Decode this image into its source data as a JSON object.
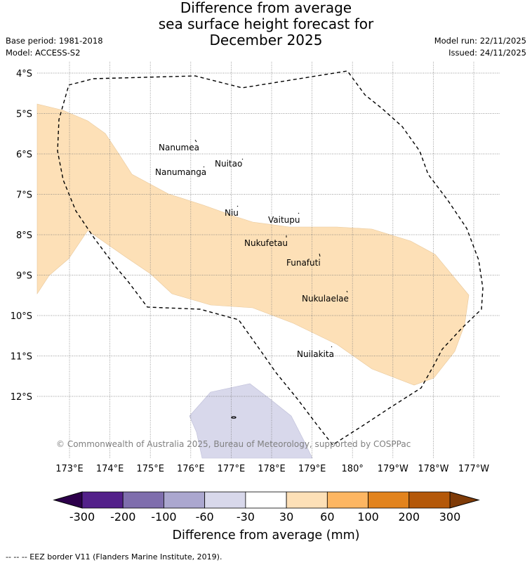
{
  "title": {
    "line1": "Difference from average",
    "line2": "sea surface height forecast for",
    "line3": "December 2025"
  },
  "meta": {
    "base_period": "Base period: 1981-2018",
    "model": "Model: ACCESS-S2",
    "model_run": "Model run: 22/11/2025",
    "issued": "Issued: 24/11/2025"
  },
  "lat_labels": [
    "4°S",
    "5°S",
    "6°S",
    "7°S",
    "8°S",
    "9°S",
    "10°S",
    "11°S",
    "12°S"
  ],
  "lon_labels": [
    "173°E",
    "174°E",
    "175°E",
    "176°E",
    "177°E",
    "178°E",
    "179°E",
    "180°",
    "179°W",
    "178°W",
    "177°W"
  ],
  "islands": [
    {
      "name": "Nanumea"
    },
    {
      "name": "Nuitao"
    },
    {
      "name": "Nanumanga"
    },
    {
      "name": "Niu"
    },
    {
      "name": "Vaitupu"
    },
    {
      "name": "Nukufetau"
    },
    {
      "name": "Funafuti"
    },
    {
      "name": "Nukulaelae"
    },
    {
      "name": "Nuilakita"
    }
  ],
  "copyright": "© Commonwealth of Australia 2025, Bureau of Meteorology, supported by COSPPac",
  "colorbar": {
    "ticks": [
      "-300",
      "-200",
      "-100",
      "-60",
      "-30",
      "30",
      "60",
      "100",
      "200",
      "300"
    ],
    "colors": [
      "#53208a",
      "#7f6ead",
      "#aba7cf",
      "#d8d8eb",
      "#ffffff",
      "#fde0b7",
      "#fdb662",
      "#e2831d",
      "#b45809"
    ],
    "extend_low": "#2d004b",
    "extend_high": "#7f3b08",
    "label": "Difference from average (mm)"
  },
  "footer": "--  --  -- EEZ border V11 (Flanders Marine Institute, 2019).",
  "colors": {
    "anomaly_30_60": "#fde0b7",
    "anomaly_-60_-30": "#d8d8eb"
  }
}
